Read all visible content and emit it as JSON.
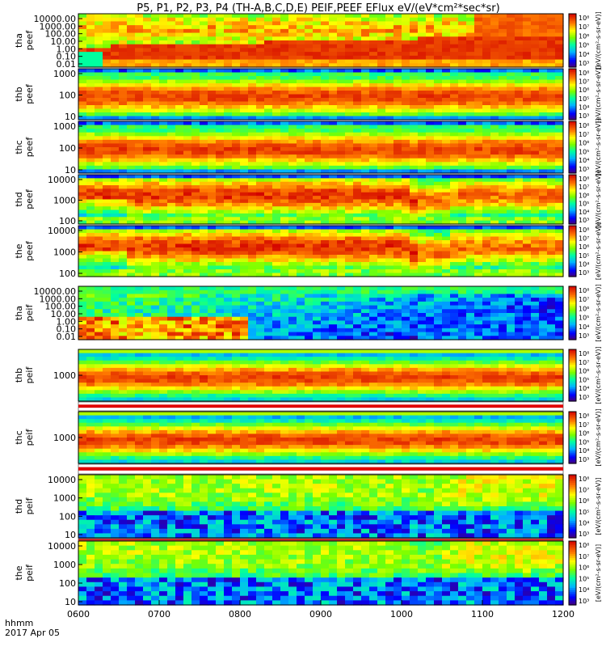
{
  "title": "P5, P1, P2, P3, P4 (TH-A,B,C,D,E) PEIF,PEEF EFlux eV/(eV*cm²*sec*sr)",
  "time_axis": {
    "ticks": [
      "0600",
      "0700",
      "0800",
      "0900",
      "1000",
      "1100",
      "1200"
    ],
    "label_line1": "hhmm",
    "label_line2": "2017 Apr 05"
  },
  "colorbar": {
    "ticks": [
      "10⁸",
      "10⁷",
      "10⁶",
      "10⁵",
      "10⁴",
      "10³"
    ],
    "unit_label": "[eV/(cm²-s-sr-eV)]"
  },
  "chart_data": {
    "type": "heatmap",
    "x_range_hhmm": [
      "0600",
      "1200"
    ],
    "z_scale": "log",
    "z_range": [
      1000,
      100000000
    ],
    "colormap": "rainbow",
    "panels": [
      {
        "name": "tha peef",
        "label_top": "tha",
        "label_bottom": "peef",
        "y_scale": "log",
        "y_ticks": [
          "10000.00",
          "1000.00",
          "100.00",
          "10.00",
          "1.00",
          "0.10",
          "0.01"
        ],
        "style": "tha_e"
      },
      {
        "name": "thb peef",
        "label_top": "thb",
        "label_bottom": "peef",
        "y_scale": "log",
        "y_ticks": [
          "1000",
          "100",
          "10"
        ],
        "style": "eband"
      },
      {
        "name": "thc peef",
        "label_top": "thc",
        "label_bottom": "peef",
        "y_scale": "log",
        "y_ticks": [
          "1000",
          "100",
          "10"
        ],
        "style": "eband"
      },
      {
        "name": "thd peef",
        "label_top": "thd",
        "label_bottom": "peef",
        "y_scale": "log",
        "y_ticks": [
          "10000",
          "1000",
          "100"
        ],
        "style": "ehot"
      },
      {
        "name": "the peef",
        "label_top": "the",
        "label_bottom": "peef",
        "y_scale": "log",
        "y_ticks": [
          "10000",
          "1000",
          "100"
        ],
        "style": "ehot"
      },
      {
        "name": "tha peif",
        "label_top": "tha",
        "label_bottom": "peif",
        "y_scale": "log",
        "y_ticks": [
          "10000.00",
          "1000.00",
          "100.00",
          "10.00",
          "1.00",
          "0.10",
          "0.01"
        ],
        "style": "tha_i"
      },
      {
        "name": "thb peif",
        "label_top": "thb",
        "label_bottom": "peif",
        "y_scale": "log",
        "y_ticks": [
          "1000"
        ],
        "style": "iband"
      },
      {
        "name": "thc peif",
        "label_top": "thc",
        "label_bottom": "peif",
        "y_scale": "log",
        "y_ticks": [
          "1000"
        ],
        "style": "iband"
      },
      {
        "name": "thd peif",
        "label_top": "thd",
        "label_bottom": "peif",
        "y_scale": "log",
        "y_ticks": [
          "10000",
          "1000",
          "100",
          "10"
        ],
        "style": "ihot"
      },
      {
        "name": "the peif",
        "label_top": "the",
        "label_bottom": "peif",
        "y_scale": "log",
        "y_ticks": [
          "10000",
          "1000",
          "100",
          "10"
        ],
        "style": "ihot"
      }
    ]
  }
}
